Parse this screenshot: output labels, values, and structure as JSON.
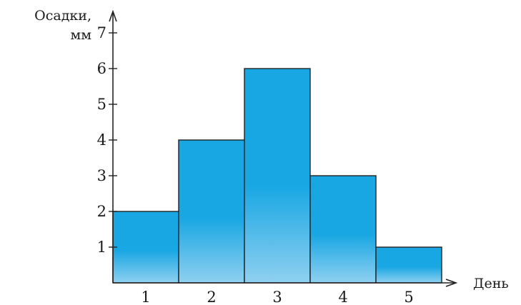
{
  "chart_data": {
    "type": "bar",
    "categories": [
      "1",
      "2",
      "3",
      "4",
      "5"
    ],
    "values": [
      2,
      4,
      6,
      3,
      1
    ],
    "title": "",
    "ylabel": [
      "Осадки,",
      "мм"
    ],
    "xlabel": "День",
    "yticks": [
      "1",
      "2",
      "3",
      "4",
      "5",
      "6",
      "7"
    ],
    "ylim": [
      0,
      7
    ],
    "grid": false,
    "legend": "none",
    "colors": {
      "bar_top": "#19a7e3",
      "bar_bottom": "#8fd0f0",
      "bar_stroke": "#222222",
      "axis": "#222222"
    }
  }
}
